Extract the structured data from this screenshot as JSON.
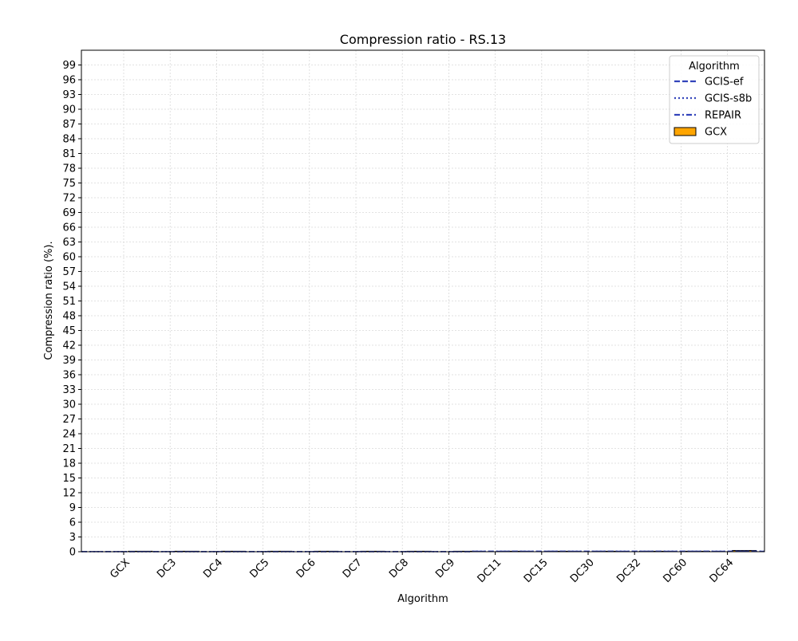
{
  "chart_data": {
    "type": "bar",
    "title": "Compression ratio -  RS.13",
    "xlabel": "Algorithm",
    "ylabel": "Compression ratio (%).",
    "categories": [
      "GCX",
      "DC3",
      "DC4",
      "DC5",
      "DC6",
      "DC7",
      "DC8",
      "DC9",
      "DC11",
      "DC15",
      "DC30",
      "DC32",
      "DC60",
      "DC64"
    ],
    "ylim": [
      0,
      102
    ],
    "yticks": [
      0,
      3,
      6,
      9,
      12,
      15,
      18,
      21,
      24,
      27,
      30,
      33,
      36,
      39,
      42,
      45,
      48,
      51,
      54,
      57,
      60,
      63,
      66,
      69,
      72,
      75,
      78,
      81,
      84,
      87,
      90,
      93,
      96,
      99
    ],
    "grid": true,
    "legend": {
      "title": "Algorithm",
      "placement": "top-right",
      "entries": [
        {
          "label": "GCIS-ef",
          "style": "dashed",
          "color": "#3344bb"
        },
        {
          "label": "GCIS-s8b",
          "style": "dotted",
          "color": "#3344bb"
        },
        {
          "label": "REPAIR",
          "style": "dashdot",
          "color": "#3344bb"
        },
        {
          "label": "GCX",
          "style": "bar",
          "color": "#ffa500"
        }
      ]
    },
    "series": [
      {
        "name": "GCIS-ef",
        "kind": "line",
        "color": "#3344bb",
        "dash": "dashed",
        "values": [
          0.03,
          0.03,
          0.03,
          0.03,
          0.03,
          0.03,
          0.03,
          0.03,
          0.08,
          0.08,
          0.08,
          0.08,
          0.08,
          0.08
        ]
      },
      {
        "name": "GCIS-s8b",
        "kind": "line",
        "color": "#3344bb",
        "dash": "dotted",
        "values": [
          0.03,
          0.03,
          0.03,
          0.03,
          0.03,
          0.03,
          0.03,
          0.03,
          0.08,
          0.08,
          0.08,
          0.08,
          0.08,
          0.08
        ]
      },
      {
        "name": "REPAIR",
        "kind": "line",
        "color": "#3344bb",
        "dash": "dashdot",
        "values": [
          0.03,
          0.03,
          0.03,
          0.03,
          0.03,
          0.03,
          0.03,
          0.03,
          0.08,
          0.08,
          0.08,
          0.08,
          0.08,
          0.08
        ]
      },
      {
        "name": "GCX",
        "kind": "bar",
        "color": "#ffa500",
        "values": [
          0.02,
          0.02,
          0.02,
          0.02,
          0.02,
          0.02,
          0.02,
          0.02,
          0.05,
          0.05,
          0.05,
          0.06,
          0.08,
          0.25
        ]
      }
    ]
  }
}
